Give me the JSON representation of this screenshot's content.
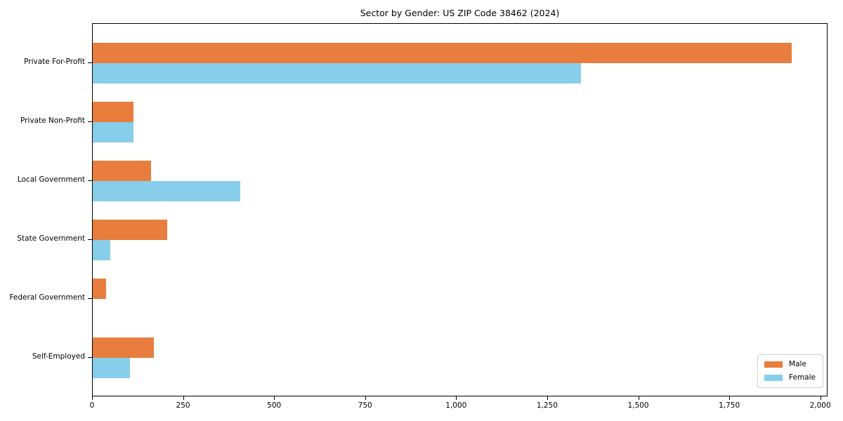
{
  "chart_data": {
    "type": "bar",
    "orientation": "horizontal",
    "title": "Sector by Gender: US ZIP Code 38462 (2024)",
    "categories": [
      "Private For-Profit",
      "Private Non-Profit",
      "Local Government",
      "State Government",
      "Federal Government",
      "Self-Employed"
    ],
    "series": [
      {
        "name": "Male",
        "color": "#E87D3E",
        "values": [
          1920,
          112,
          160,
          205,
          37,
          167
        ]
      },
      {
        "name": "Female",
        "color": "#87CEEB",
        "values": [
          1340,
          112,
          406,
          48,
          0,
          102
        ]
      }
    ],
    "xlabel": "",
    "ylabel": "",
    "xlim": [
      0,
      2020
    ],
    "x_ticks": {
      "values": [
        0,
        250,
        500,
        750,
        1000,
        1250,
        1500,
        1750,
        2000
      ],
      "labels": [
        "0",
        "250",
        "500",
        "750",
        "1,000",
        "1,250",
        "1,500",
        "1,750",
        "2,000"
      ]
    },
    "grid": false,
    "legend": {
      "position": "lower right",
      "entries": [
        "Male",
        "Female"
      ]
    },
    "colors": {
      "axis": "#000000",
      "legend_border": "#cccccc",
      "background": "#ffffff"
    }
  }
}
